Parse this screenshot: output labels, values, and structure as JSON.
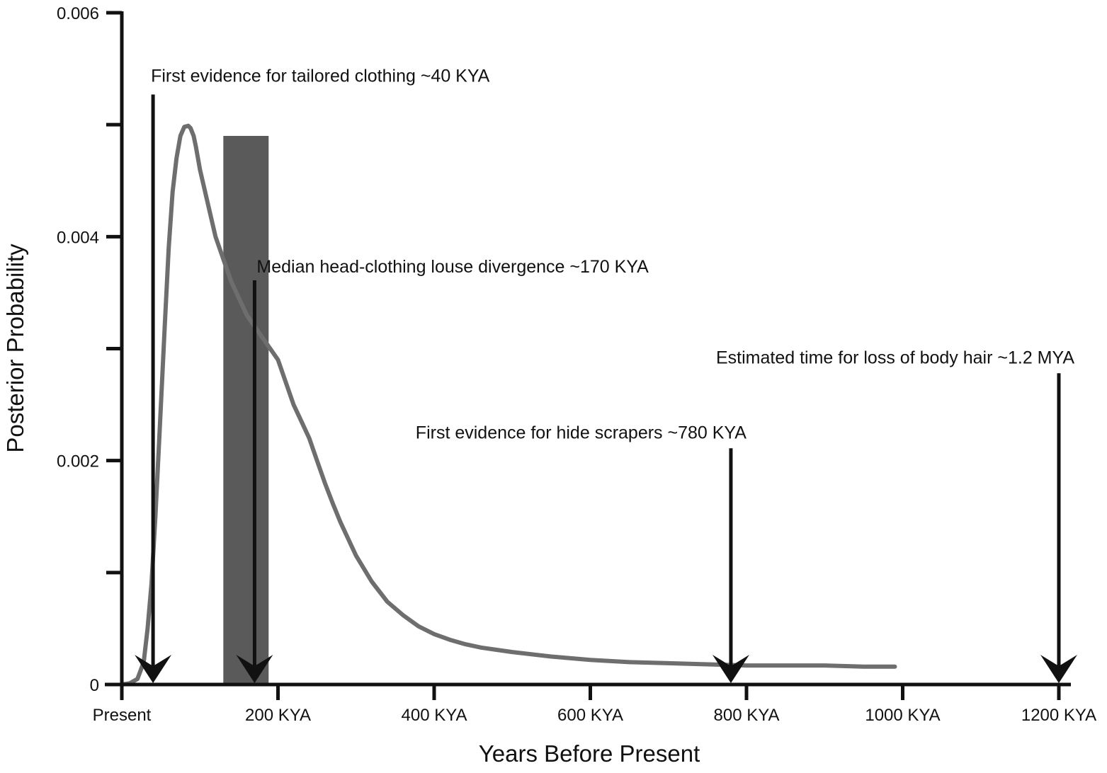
{
  "chart_data": {
    "type": "line",
    "xlabel": "Years Before Present",
    "ylabel": "Posterior Probability",
    "xlim": [
      0,
      1200
    ],
    "ylim": [
      0,
      0.006
    ],
    "x_unit_note": "KYA",
    "x_ticks": [
      {
        "value": 0,
        "label": "Present"
      },
      {
        "value": 200,
        "label": "200 KYA"
      },
      {
        "value": 400,
        "label": "400 KYA"
      },
      {
        "value": 600,
        "label": "600 KYA"
      },
      {
        "value": 800,
        "label": "800 KYA"
      },
      {
        "value": 1000,
        "label": "1000 KYA"
      },
      {
        "value": 1200,
        "label": "1200 KYA"
      }
    ],
    "y_ticks": [
      {
        "value": 0,
        "label": "0"
      },
      {
        "value": 0.001,
        "label": ""
      },
      {
        "value": 0.002,
        "label": "0.002"
      },
      {
        "value": 0.003,
        "label": ""
      },
      {
        "value": 0.004,
        "label": "0.004"
      },
      {
        "value": 0.005,
        "label": ""
      },
      {
        "value": 0.006,
        "label": "0.006"
      }
    ],
    "series": [
      {
        "color": "#6e6e6e",
        "x": [
          0,
          10,
          20,
          28,
          33,
          38,
          43,
          48,
          55,
          60,
          65,
          70,
          75,
          80,
          85,
          88,
          92,
          95,
          100,
          110,
          120,
          130,
          140,
          150,
          160,
          170,
          180,
          190,
          200,
          210,
          220,
          230,
          240,
          250,
          260,
          270,
          280,
          290,
          300,
          320,
          340,
          360,
          380,
          400,
          420,
          440,
          460,
          480,
          500,
          550,
          600,
          650,
          700,
          750,
          800,
          850,
          900,
          950,
          990
        ],
        "y": [
          0,
          1e-05,
          5e-05,
          0.0002,
          0.0005,
          0.0009,
          0.0015,
          0.0022,
          0.0032,
          0.0039,
          0.0044,
          0.0047,
          0.0049,
          0.00498,
          0.00499,
          0.00497,
          0.0049,
          0.0048,
          0.0046,
          0.0043,
          0.004,
          0.0038,
          0.0036,
          0.00345,
          0.0033,
          0.0032,
          0.0031,
          0.003,
          0.0029,
          0.0027,
          0.0025,
          0.00235,
          0.0022,
          0.002,
          0.0018,
          0.00162,
          0.00145,
          0.0013,
          0.00115,
          0.00092,
          0.00074,
          0.00062,
          0.00052,
          0.00045,
          0.0004,
          0.00036,
          0.00033,
          0.00031,
          0.00029,
          0.00025,
          0.00022,
          0.0002,
          0.00019,
          0.00018,
          0.00017,
          0.00017,
          0.00017,
          0.00016,
          0.00016
        ]
      }
    ],
    "shaded_band": {
      "x_start": 130,
      "x_end": 188,
      "y_top": 0.0049,
      "color": "#5a5a5a"
    },
    "annotations": [
      {
        "text": "First evidence for tailored clothing ~40 KYA",
        "x": 40,
        "arrow_top_y": 0.00527
      },
      {
        "text": "Median head-clothing louse divergence ~170 KYA",
        "x": 170,
        "arrow_top_y": 0.00361
      },
      {
        "text": "First evidence for hide scrapers ~780 KYA",
        "x": 780,
        "arrow_top_y": 0.00211
      },
      {
        "text": "Estimated time for loss of body hair ~1.2 MYA",
        "x": 1200,
        "arrow_top_y": 0.00278
      }
    ],
    "grid": false,
    "legend": "none"
  }
}
